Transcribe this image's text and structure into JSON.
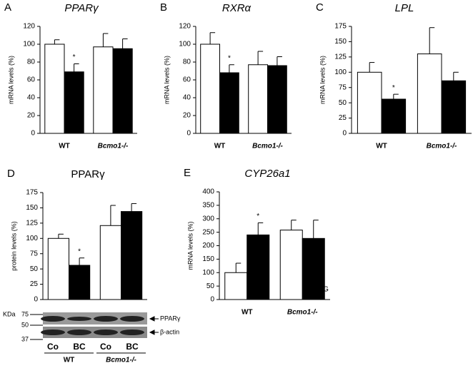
{
  "chart_data": [
    {
      "type": "bar",
      "panel": "A",
      "title": "PPARγ",
      "italic": true,
      "y_label": "mRNA levels (%)",
      "categories": [
        "WT",
        "Bcmo1-/-"
      ],
      "ylim": [
        0,
        120
      ],
      "yticks": [
        0,
        20,
        40,
        60,
        80,
        100,
        120
      ],
      "series": [
        {
          "color": "#ffffff",
          "values": [
            100,
            97
          ],
          "errors": [
            5,
            15
          ]
        },
        {
          "color": "#000000",
          "values": [
            69,
            95
          ],
          "errors": [
            9,
            11
          ]
        }
      ],
      "annotations": [
        {
          "text": "*",
          "series": 1,
          "category": 0
        }
      ]
    },
    {
      "type": "bar",
      "panel": "B",
      "title": "RXRα",
      "italic": true,
      "y_label": "mRNA levels (%)",
      "categories": [
        "WT",
        "Bcmo1-/-"
      ],
      "ylim": [
        0,
        120
      ],
      "yticks": [
        0,
        20,
        40,
        60,
        80,
        100,
        120
      ],
      "series": [
        {
          "color": "#ffffff",
          "values": [
            100,
            77
          ],
          "errors": [
            13,
            15
          ]
        },
        {
          "color": "#000000",
          "values": [
            68,
            76
          ],
          "errors": [
            9,
            10
          ]
        }
      ],
      "annotations": [
        {
          "text": "*",
          "series": 1,
          "category": 0
        }
      ]
    },
    {
      "type": "bar",
      "panel": "C",
      "title": "LPL",
      "italic": true,
      "y_label": "mRNA levels (%)",
      "categories": [
        "WT",
        "Bcmo1-/-"
      ],
      "ylim": [
        0,
        175
      ],
      "yticks": [
        0,
        25,
        50,
        75,
        100,
        125,
        150,
        175
      ],
      "series": [
        {
          "color": "#ffffff",
          "values": [
            100,
            130
          ],
          "errors": [
            16,
            43
          ]
        },
        {
          "color": "#000000",
          "values": [
            56,
            86
          ],
          "errors": [
            8,
            14
          ]
        }
      ],
      "annotations": [
        {
          "text": "*",
          "series": 1,
          "category": 0
        }
      ]
    },
    {
      "type": "bar",
      "panel": "D",
      "title": "PPARγ",
      "italic": false,
      "y_label": "protein levels (%)",
      "categories": [
        "WT",
        "Bcmo1-/-"
      ],
      "ylim": [
        0,
        175
      ],
      "yticks": [
        0,
        25,
        50,
        75,
        100,
        125,
        150,
        175
      ],
      "series": [
        {
          "color": "#ffffff",
          "values": [
            100,
            121
          ],
          "errors": [
            7,
            33
          ]
        },
        {
          "color": "#000000",
          "values": [
            56,
            144
          ],
          "errors": [
            12,
            13
          ]
        }
      ],
      "annotations": [
        {
          "text": "*",
          "series": 1,
          "category": 0
        }
      ],
      "blot": {
        "unit": "KDa",
        "markers": [
          75,
          50,
          37
        ],
        "bands": [
          "PPARγ",
          "β-actin"
        ],
        "lanes": [
          "Co",
          "BC",
          "Co",
          "BC"
        ]
      }
    },
    {
      "type": "bar",
      "panel": "E",
      "title": "CYP26a1",
      "italic": true,
      "y_label": "mRNA levels (%)",
      "categories": [
        "WT",
        "Bcmo1-/-"
      ],
      "ylim": [
        0,
        400
      ],
      "yticks": [
        0,
        50,
        100,
        150,
        200,
        250,
        300,
        350,
        400
      ],
      "series": [
        {
          "color": "#ffffff",
          "values": [
            100,
            258
          ],
          "errors": [
            35,
            37
          ]
        },
        {
          "color": "#000000",
          "values": [
            240,
            227
          ],
          "errors": [
            45,
            68
          ]
        }
      ],
      "annotations": [
        {
          "text": "*",
          "series": 1,
          "category": 0
        }
      ],
      "note": "G"
    }
  ]
}
